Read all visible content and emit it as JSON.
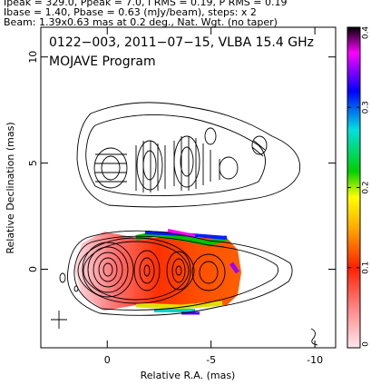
{
  "chart_data": {
    "type": "contour",
    "header": [
      "Ipeak = 329.0, Ppeak = 7.0, I RMS = 0.19, P RMS = 0.19",
      "Ibase = 1.40, Pbase = 0.63 (mJy/beam), steps: x 2",
      "Beam: 1.39x0.63 mas at 0.2 deg., Nat. Wgt. (no taper)"
    ],
    "title": "0122−003, 2011−07−15, VLBA 15.4 GHz",
    "subtitle": "MOJAVE Program",
    "x_label": "Relative R.A. (mas)",
    "y_label": "Relative Declination (mas)",
    "xlim": [
      3.2,
      -11.0
    ],
    "xticks": [
      0,
      -5,
      -10
    ],
    "ylim": [
      -3.7,
      11.4
    ],
    "yticks": [
      0,
      5,
      10
    ],
    "clim": [
      0,
      0.4
    ],
    "cticks": [
      0,
      0.1,
      0.2,
      0.3,
      0.4
    ]
  }
}
